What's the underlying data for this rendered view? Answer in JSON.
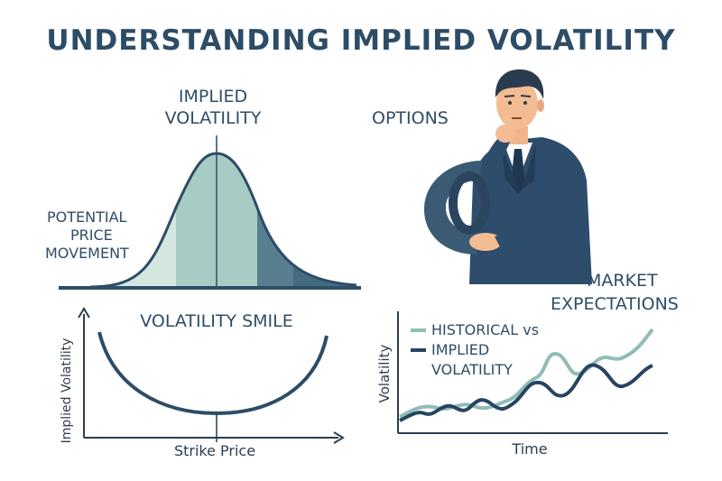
{
  "title": "UNDERSTANDING IMPLIED VOLATILITY",
  "bell": {
    "label_line1": "IMPLIED",
    "label_line2": "VOLATILITY",
    "left_label_line1": "POTENTIAL",
    "left_label_line2": "PRICE",
    "left_label_line3": "MOVEMENT"
  },
  "options": {
    "label": "OPTIONS"
  },
  "smile": {
    "title": "VOLATILITY SMILE",
    "ylabel": "Implied Volatility",
    "xlabel": "Strike Price"
  },
  "market": {
    "label_line1": "MARKET",
    "label_line2": "EXPECTATIONS",
    "legend_historical": "HISTORICAL vs",
    "legend_implied_line1": "IMPLIED",
    "legend_implied_line2": "VOLATILITY",
    "ylabel": "Volatility",
    "xlabel": "Time"
  },
  "colors": {
    "dark_navy": "#2d4c66",
    "teal_light": "#d3e6e0",
    "teal_mid": "#a6ccc4",
    "teal_dark": "#577f8f",
    "historical_line": "#8fbdb6",
    "implied_line": "#274460"
  }
}
